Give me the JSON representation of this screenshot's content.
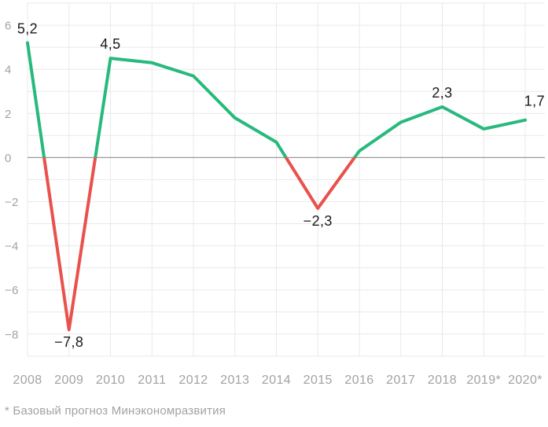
{
  "chart_data": {
    "type": "line",
    "title": "",
    "xlabel": "",
    "ylabel": "",
    "categories": [
      "2008",
      "2009",
      "2010",
      "2011",
      "2012",
      "2013",
      "2014",
      "2015",
      "2016",
      "2017",
      "2018",
      "2019*",
      "2020*"
    ],
    "values": [
      5.2,
      -7.8,
      4.5,
      4.3,
      3.7,
      1.8,
      0.7,
      -2.3,
      0.3,
      1.6,
      2.3,
      1.3,
      1.7
    ],
    "point_labels": [
      {
        "index": 0,
        "text": "5,2",
        "placement": "above"
      },
      {
        "index": 1,
        "text": "−7,8",
        "placement": "below"
      },
      {
        "index": 2,
        "text": "4,5",
        "placement": "above"
      },
      {
        "index": 7,
        "text": "−2,3",
        "placement": "below"
      },
      {
        "index": 10,
        "text": "2,3",
        "placement": "above"
      },
      {
        "index": 12,
        "text": "1,7",
        "placement": "above-end"
      }
    ],
    "y_ticks": [
      6,
      4,
      2,
      0,
      -2,
      -4,
      -6,
      -8
    ],
    "y_tick_labels": [
      "6",
      "4",
      "2",
      "0",
      "−2",
      "−4",
      "−6",
      "−8"
    ],
    "ylim": [
      -9,
      7
    ],
    "grid": true,
    "grid_step": 1,
    "legend": "none",
    "colors": {
      "positive_line": "#28b97d",
      "negative_line": "#e9514c",
      "grid_line": "#e9e9e9",
      "zero_line": "#9a9a9a",
      "axis_text": "#a2a2a7",
      "point_label_text": "#1a1a1e",
      "background": "#ffffff"
    }
  },
  "footnote": "* Базовый прогноз Минэкономразвития"
}
